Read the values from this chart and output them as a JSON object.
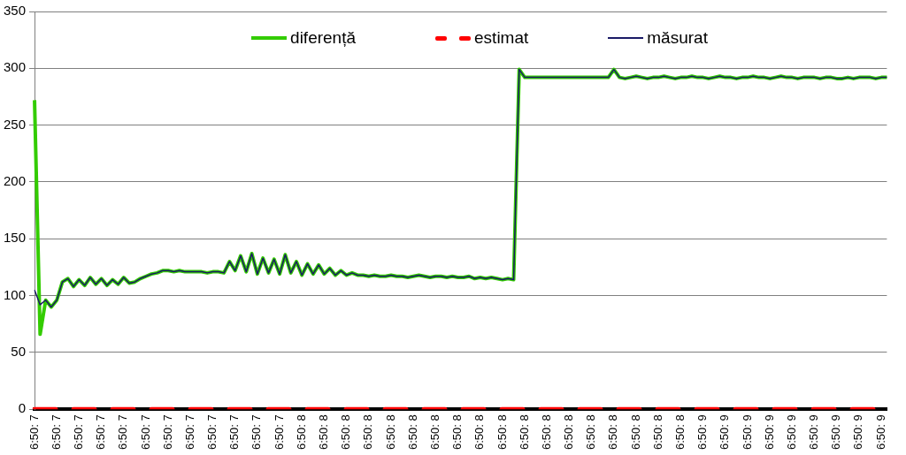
{
  "chart_data": {
    "type": "line",
    "categories": [
      "6:50: 7",
      null,
      null,
      null,
      "6:50: 7",
      null,
      null,
      null,
      "6:50: 7",
      null,
      null,
      null,
      "6:50: 7",
      null,
      null,
      null,
      "6:50: 7",
      null,
      null,
      null,
      "6:50: 7",
      null,
      null,
      null,
      "6:50: 7",
      null,
      null,
      null,
      "6:50: 7",
      null,
      null,
      null,
      "6:50: 7",
      null,
      null,
      null,
      "6:50: 7",
      null,
      null,
      null,
      "6:50: 7",
      null,
      null,
      null,
      "6:50: 7",
      null,
      null,
      null,
      "6:50: 8",
      null,
      null,
      null,
      "6:50: 8",
      null,
      null,
      null,
      "6:50: 8",
      null,
      null,
      null,
      "6:50: 8",
      null,
      null,
      null,
      "6:50: 8",
      null,
      null,
      null,
      "6:50: 8",
      null,
      null,
      null,
      "6:50: 8",
      null,
      null,
      null,
      "6:50: 8",
      null,
      null,
      null,
      "6:50: 8",
      null,
      null,
      null,
      "6:50: 8",
      null,
      null,
      null,
      "6:50: 8",
      null,
      null,
      null,
      "6:50: 8",
      null,
      null,
      null,
      "6:50: 8",
      null,
      null,
      null,
      "6:50: 8",
      null,
      null,
      null,
      "6:50: 8",
      null,
      null,
      null,
      "6:50: 8",
      null,
      null,
      null,
      "6:50: 8",
      null,
      null,
      null,
      "6:50: 8",
      null,
      null,
      null,
      "6:50: 9",
      null,
      null,
      null,
      "6:50: 9",
      null,
      null,
      null,
      "6:50: 9",
      null,
      null,
      null,
      "6:50: 9",
      null,
      null,
      null,
      "6:50: 9",
      null,
      null,
      null,
      "6:50: 9",
      null,
      null,
      null,
      "6:50: 9",
      null,
      null,
      null,
      "6:50: 9",
      null,
      null,
      null,
      "6:50: 9",
      null
    ],
    "series": [
      {
        "name": "diferență",
        "color": "#33cc00",
        "values": [
          272,
          66,
          96,
          90,
          96,
          112,
          115,
          108,
          114,
          109,
          116,
          110,
          115,
          109,
          114,
          110,
          116,
          111,
          112,
          115,
          117,
          119,
          120,
          122,
          122,
          121,
          122,
          121,
          121,
          121,
          121,
          120,
          121,
          121,
          120,
          130,
          122,
          135,
          121,
          137,
          119,
          133,
          120,
          132,
          119,
          136,
          120,
          130,
          118,
          128,
          119,
          127,
          119,
          124,
          118,
          122,
          118,
          120,
          118,
          118,
          117,
          118,
          117,
          117,
          118,
          117,
          117,
          116,
          117,
          118,
          117,
          116,
          117,
          117,
          116,
          117,
          116,
          116,
          117,
          115,
          116,
          115,
          116,
          115,
          114,
          115,
          114,
          299,
          292,
          292,
          292,
          292,
          292,
          292,
          292,
          292,
          292,
          292,
          292,
          292,
          292,
          292,
          292,
          292,
          299,
          292,
          291,
          292,
          293,
          292,
          291,
          292,
          292,
          293,
          292,
          291,
          292,
          292,
          293,
          292,
          292,
          291,
          292,
          293,
          292,
          292,
          291,
          292,
          292,
          293,
          292,
          292,
          291,
          292,
          293,
          292,
          292,
          291,
          292,
          292,
          292,
          291,
          292,
          292,
          291,
          291,
          292,
          291,
          292,
          292,
          292,
          291,
          292,
          292
        ]
      },
      {
        "name": "estimat",
        "color": "#ff0000",
        "line_style": "dashed",
        "values": [
          0,
          0,
          0,
          0,
          0,
          0,
          0,
          0,
          0,
          0,
          0,
          0,
          0,
          0,
          0,
          0,
          0,
          0,
          0,
          0,
          0,
          0,
          0,
          0,
          0,
          0,
          0,
          0,
          0,
          0,
          0,
          0,
          0,
          0,
          0,
          0,
          0,
          0,
          0,
          0,
          0,
          0,
          0,
          0,
          0,
          0,
          0,
          0,
          0,
          0,
          0,
          0,
          0,
          0,
          0,
          0,
          0,
          0,
          0,
          0,
          0,
          0,
          0,
          0,
          0,
          0,
          0,
          0,
          0,
          0,
          0,
          0,
          0,
          0,
          0,
          0,
          0,
          0,
          0,
          0,
          0,
          0,
          0,
          0,
          0,
          0,
          0,
          0,
          0,
          0,
          0,
          0,
          0,
          0,
          0,
          0,
          0,
          0,
          0,
          0,
          0,
          0,
          0,
          0,
          0,
          0,
          0,
          0,
          0,
          0,
          0,
          0,
          0,
          0,
          0,
          0,
          0,
          0,
          0,
          0,
          0,
          0,
          0,
          0,
          0,
          0,
          0,
          0,
          0,
          0,
          0,
          0,
          0,
          0,
          0,
          0,
          0,
          0,
          0,
          0,
          0,
          0,
          0,
          0,
          0,
          0,
          0,
          0,
          0,
          0,
          0,
          0,
          0,
          null
        ]
      },
      {
        "name": "măsurat",
        "color": "#1a1a66",
        "values": [
          105,
          92,
          96,
          90,
          96,
          112,
          115,
          108,
          114,
          109,
          116,
          110,
          115,
          109,
          114,
          110,
          116,
          111,
          112,
          115,
          117,
          119,
          120,
          122,
          122,
          121,
          122,
          121,
          121,
          121,
          121,
          120,
          121,
          121,
          120,
          130,
          122,
          135,
          121,
          137,
          119,
          133,
          120,
          132,
          119,
          136,
          120,
          130,
          118,
          128,
          119,
          127,
          119,
          124,
          118,
          122,
          118,
          120,
          118,
          118,
          117,
          118,
          117,
          117,
          118,
          117,
          117,
          116,
          117,
          118,
          117,
          116,
          117,
          117,
          116,
          117,
          116,
          116,
          117,
          115,
          116,
          115,
          116,
          115,
          114,
          115,
          114,
          299,
          292,
          292,
          292,
          292,
          292,
          292,
          292,
          292,
          292,
          292,
          292,
          292,
          292,
          292,
          292,
          292,
          299,
          292,
          291,
          292,
          293,
          292,
          291,
          292,
          292,
          293,
          292,
          291,
          292,
          292,
          293,
          292,
          292,
          291,
          292,
          293,
          292,
          292,
          291,
          292,
          292,
          293,
          292,
          292,
          291,
          292,
          293,
          292,
          292,
          291,
          292,
          292,
          292,
          291,
          292,
          292,
          291,
          291,
          292,
          291,
          292,
          292,
          292,
          291,
          292,
          292
        ]
      }
    ],
    "ylim": [
      0,
      350
    ],
    "yticks": [
      0,
      50,
      100,
      150,
      200,
      250,
      300,
      350
    ],
    "grid": "y",
    "legend": "top",
    "marker": "none"
  }
}
